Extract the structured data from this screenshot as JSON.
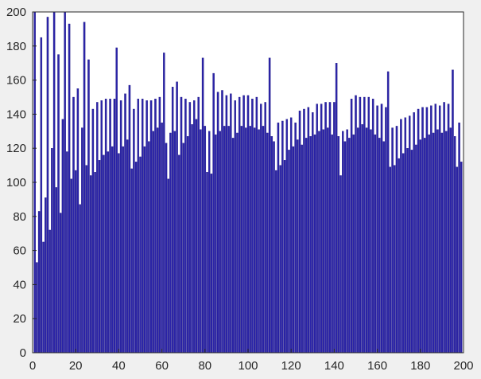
{
  "window": {
    "background": "#f0f0f0"
  },
  "chart_data": {
    "type": "bar",
    "title": "",
    "xlabel": "",
    "ylabel": "",
    "xlim": [
      0,
      200
    ],
    "ylim": [
      0,
      200
    ],
    "grid": false,
    "bar_color": "#2b24a8",
    "bar_edge_color": "#170f7a",
    "axes_background": "#ffffff",
    "x_ticks": [
      0,
      20,
      40,
      60,
      80,
      100,
      120,
      140,
      160,
      180,
      200
    ],
    "y_ticks": [
      0,
      20,
      40,
      60,
      80,
      100,
      120,
      140,
      160,
      180,
      200
    ],
    "x": [
      1,
      2,
      3,
      4,
      5,
      6,
      7,
      8,
      9,
      10,
      11,
      12,
      13,
      14,
      15,
      16,
      17,
      18,
      19,
      20,
      21,
      22,
      23,
      24,
      25,
      26,
      27,
      28,
      29,
      30,
      31,
      32,
      33,
      34,
      35,
      36,
      37,
      38,
      39,
      40,
      41,
      42,
      43,
      44,
      45,
      46,
      47,
      48,
      49,
      50,
      51,
      52,
      53,
      54,
      55,
      56,
      57,
      58,
      59,
      60,
      61,
      62,
      63,
      64,
      65,
      66,
      67,
      68,
      69,
      70,
      71,
      72,
      73,
      74,
      75,
      76,
      77,
      78,
      79,
      80,
      81,
      82,
      83,
      84,
      85,
      86,
      87,
      88,
      89,
      90,
      91,
      92,
      93,
      94,
      95,
      96,
      97,
      98,
      99,
      100,
      101,
      102,
      103,
      104,
      105,
      106,
      107,
      108,
      109,
      110,
      111,
      112,
      113,
      114,
      115,
      116,
      117,
      118,
      119,
      120,
      121,
      122,
      123,
      124,
      125,
      126,
      127,
      128,
      129,
      130,
      131,
      132,
      133,
      134,
      135,
      136,
      137,
      138,
      139,
      140,
      141,
      142,
      143,
      144,
      145,
      146,
      147,
      148,
      149,
      150,
      151,
      152,
      153,
      154,
      155,
      156,
      157,
      158,
      159,
      160,
      161,
      162,
      163,
      164,
      165,
      166,
      167,
      168,
      169,
      170,
      171,
      172,
      173,
      174,
      175,
      176,
      177,
      178,
      179,
      180,
      181,
      182,
      183,
      184,
      185,
      186,
      187,
      188,
      189,
      190,
      191,
      192,
      193,
      194,
      195,
      196,
      197,
      198,
      199
    ],
    "values": [
      200,
      53,
      83,
      185,
      65,
      91,
      197,
      72,
      120,
      200,
      97,
      175,
      82,
      137,
      200,
      118,
      193,
      102,
      150,
      107,
      155,
      87,
      132,
      194,
      110,
      172,
      104,
      143,
      106,
      147,
      113,
      148,
      116,
      149,
      118,
      149,
      121,
      149,
      179,
      117,
      148,
      121,
      152,
      125,
      157,
      108,
      143,
      112,
      149,
      115,
      149,
      121,
      148,
      124,
      148,
      130,
      149,
      132,
      150,
      135,
      176,
      123,
      102,
      129,
      156,
      130,
      159,
      116,
      150,
      123,
      149,
      127,
      147,
      134,
      148,
      137,
      150,
      131,
      173,
      133,
      106,
      130,
      105,
      164,
      128,
      153,
      130,
      154,
      133,
      151,
      133,
      152,
      126,
      148,
      129,
      150,
      133,
      151,
      132,
      151,
      133,
      149,
      132,
      150,
      131,
      146,
      133,
      147,
      129,
      173,
      127,
      124,
      107,
      135,
      110,
      136,
      113,
      137,
      119,
      138,
      121,
      135,
      125,
      142,
      122,
      143,
      126,
      144,
      127,
      141,
      128,
      146,
      130,
      146,
      131,
      147,
      132,
      147,
      128,
      147,
      170,
      127,
      104,
      130,
      124,
      131,
      126,
      149,
      128,
      151,
      132,
      150,
      134,
      150,
      132,
      150,
      131,
      149,
      128,
      145,
      126,
      146,
      124,
      144,
      165,
      109,
      132,
      110,
      133,
      114,
      137,
      117,
      138,
      120,
      139,
      119,
      141,
      122,
      143,
      125,
      144,
      126,
      144,
      128,
      145,
      129,
      146,
      131,
      145,
      129,
      147,
      130,
      146,
      132,
      166,
      127,
      109,
      135,
      112
    ],
    "notes_on_estimation": ""
  }
}
